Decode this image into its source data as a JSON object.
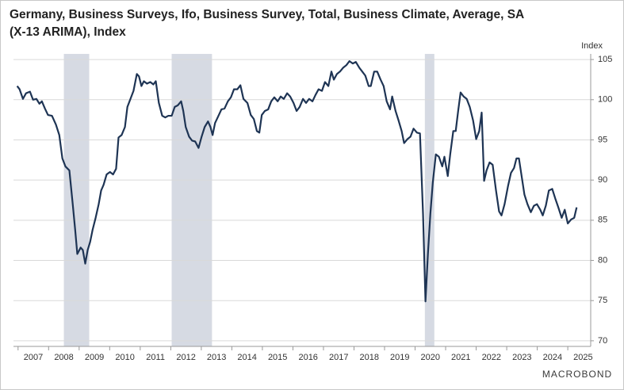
{
  "chart_data": {
    "type": "line",
    "title": "Germany, Business Surveys, Ifo, Business Survey, Total, Business Climate, Average, SA",
    "subtitle": "(X-13 ARIMA), Index",
    "y_axis_label": "Index",
    "source": "MACROBOND",
    "color": "#1e3454",
    "shade_color": "#d6dae3",
    "shaded_periods": [
      [
        2008.5,
        2009.33
      ],
      [
        2012.03,
        2013.35
      ],
      [
        2020.32,
        2020.63
      ]
    ],
    "xlim": [
      2006.85,
      2025.75
    ],
    "xticks": [
      2007,
      2008,
      2009,
      2010,
      2011,
      2012,
      2013,
      2014,
      2015,
      2016,
      2017,
      2018,
      2019,
      2020,
      2021,
      2022,
      2023,
      2024,
      2025
    ],
    "ylim": [
      69.3,
      105.7
    ],
    "yticks": [
      70,
      75,
      80,
      85,
      90,
      95,
      100,
      105
    ],
    "grid": true,
    "x": [
      2006.97,
      2007.05,
      2007.16,
      2007.26,
      2007.39,
      2007.49,
      2007.6,
      2007.7,
      2007.78,
      2007.88,
      2007.98,
      2008.11,
      2008.24,
      2008.35,
      2008.45,
      2008.55,
      2008.68,
      2008.79,
      2008.87,
      2008.94,
      2009.05,
      2009.12,
      2009.2,
      2009.28,
      2009.36,
      2009.44,
      2009.54,
      2009.64,
      2009.72,
      2009.8,
      2009.9,
      2010.01,
      2010.11,
      2010.21,
      2010.29,
      2010.39,
      2010.5,
      2010.58,
      2010.68,
      2010.78,
      2010.89,
      2010.96,
      2011.04,
      2011.12,
      2011.22,
      2011.33,
      2011.43,
      2011.51,
      2011.61,
      2011.72,
      2011.82,
      2011.92,
      2012.03,
      2012.13,
      2012.23,
      2012.34,
      2012.41,
      2012.49,
      2012.6,
      2012.7,
      2012.8,
      2012.91,
      2013.01,
      2013.11,
      2013.22,
      2013.3,
      2013.37,
      2013.45,
      2013.55,
      2013.66,
      2013.76,
      2013.87,
      2013.97,
      2014.07,
      2014.18,
      2014.28,
      2014.38,
      2014.51,
      2014.62,
      2014.72,
      2014.82,
      2014.9,
      2014.98,
      2015.08,
      2015.19,
      2015.29,
      2015.39,
      2015.5,
      2015.6,
      2015.7,
      2015.81,
      2015.91,
      2016.02,
      2016.12,
      2016.22,
      2016.33,
      2016.43,
      2016.53,
      2016.64,
      2016.74,
      2016.84,
      2016.95,
      2017.05,
      2017.16,
      2017.26,
      2017.34,
      2017.44,
      2017.54,
      2017.65,
      2017.75,
      2017.85,
      2017.96,
      2018.06,
      2018.17,
      2018.27,
      2018.37,
      2018.48,
      2018.55,
      2018.66,
      2018.76,
      2018.87,
      2018.97,
      2019.07,
      2019.18,
      2019.25,
      2019.36,
      2019.46,
      2019.56,
      2019.64,
      2019.75,
      2019.85,
      2019.95,
      2020.06,
      2020.16,
      2020.26,
      2020.34,
      2020.42,
      2020.5,
      2020.58,
      2020.68,
      2020.78,
      2020.89,
      2020.96,
      2021.07,
      2021.15,
      2021.25,
      2021.33,
      2021.41,
      2021.49,
      2021.59,
      2021.69,
      2021.79,
      2021.9,
      2022.0,
      2022.1,
      2022.18,
      2022.26,
      2022.34,
      2022.44,
      2022.54,
      2022.65,
      2022.75,
      2022.83,
      2022.93,
      2023.04,
      2023.14,
      2023.24,
      2023.32,
      2023.4,
      2023.5,
      2023.58,
      2023.68,
      2023.79,
      2023.89,
      2023.99,
      2024.1,
      2024.18,
      2024.28,
      2024.38,
      2024.49,
      2024.59,
      2024.69,
      2024.8,
      2024.9,
      2025.0,
      2025.11,
      2025.21,
      2025.29
    ],
    "values": [
      101.7,
      101.3,
      100.1,
      100.8,
      101.0,
      100.0,
      100.1,
      99.5,
      99.8,
      98.9,
      98.1,
      98.0,
      96.9,
      95.6,
      92.7,
      91.7,
      91.2,
      87.0,
      83.8,
      80.8,
      81.6,
      81.3,
      79.6,
      81.3,
      82.3,
      83.8,
      85.3,
      87.0,
      88.7,
      89.4,
      90.7,
      91.0,
      90.7,
      91.4,
      95.3,
      95.6,
      96.6,
      99.1,
      100.1,
      101.1,
      103.2,
      102.9,
      101.7,
      102.3,
      102.0,
      102.2,
      101.9,
      102.3,
      99.6,
      98.0,
      97.8,
      98.0,
      98.0,
      99.1,
      99.3,
      99.8,
      98.6,
      96.6,
      95.4,
      94.9,
      94.8,
      94.0,
      95.4,
      96.6,
      97.3,
      96.6,
      95.6,
      97.1,
      97.9,
      98.8,
      98.9,
      99.8,
      100.3,
      101.3,
      101.3,
      101.8,
      100.1,
      99.6,
      98.1,
      97.6,
      96.1,
      95.9,
      98.1,
      98.6,
      98.8,
      99.8,
      100.3,
      99.8,
      100.4,
      100.1,
      100.8,
      100.4,
      99.6,
      98.6,
      99.1,
      100.1,
      99.6,
      100.1,
      99.8,
      100.6,
      101.3,
      101.1,
      102.2,
      101.7,
      103.5,
      102.5,
      103.2,
      103.5,
      104.0,
      104.3,
      104.8,
      104.5,
      104.7,
      104.0,
      103.5,
      103.0,
      101.7,
      101.7,
      103.5,
      103.5,
      102.5,
      101.7,
      99.8,
      98.8,
      100.4,
      98.6,
      97.4,
      96.1,
      94.6,
      95.1,
      95.4,
      96.4,
      95.9,
      95.8,
      85.8,
      74.9,
      80.8,
      85.8,
      89.7,
      93.2,
      92.9,
      91.7,
      92.9,
      90.5,
      93.2,
      96.1,
      96.1,
      98.6,
      100.9,
      100.4,
      100.1,
      99.1,
      97.4,
      95.1,
      96.1,
      98.4,
      89.9,
      91.2,
      92.2,
      91.9,
      88.7,
      86.1,
      85.6,
      87.0,
      89.2,
      90.9,
      91.5,
      92.7,
      92.7,
      90.2,
      88.2,
      87.0,
      86.0,
      86.8,
      87.0,
      86.3,
      85.6,
      86.8,
      88.7,
      88.9,
      87.7,
      86.6,
      85.3,
      86.3,
      84.6,
      85.1,
      85.3,
      86.6
    ]
  }
}
